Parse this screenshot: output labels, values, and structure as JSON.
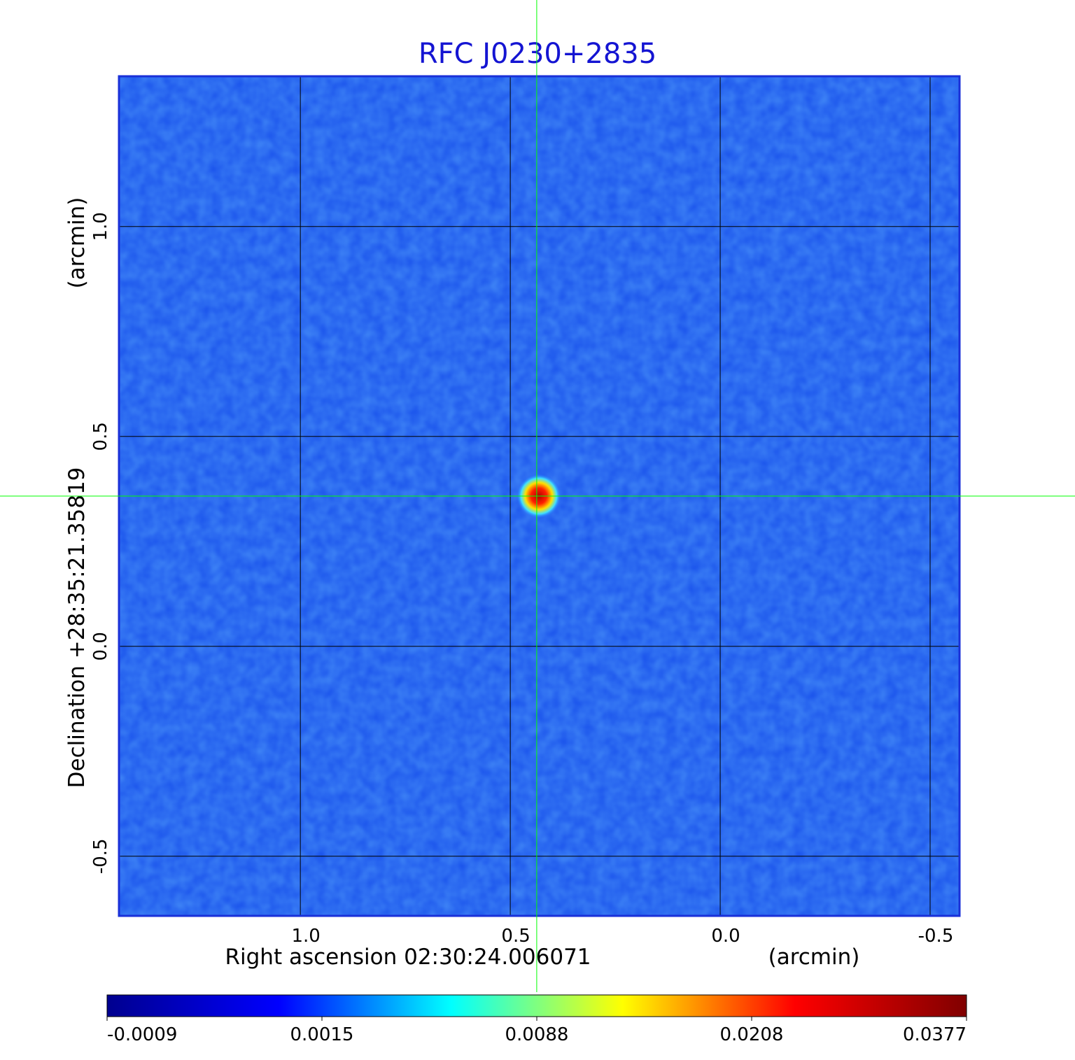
{
  "chart_data": {
    "type": "image",
    "title": "RFC J0230+2835",
    "title_color": "#1414d2",
    "x_label": "Right ascension  02:30:24.006071",
    "x_unit": "(arcmin)",
    "y_label": "Declination  +28:35:21.35819",
    "y_unit": "(arcmin)",
    "xlim": [
      1.432,
      -0.57
    ],
    "ylim": [
      -0.642,
      1.358
    ],
    "xticks": [
      {
        "value": 1,
        "label": "1.0"
      },
      0.5,
      {
        "value": 0,
        "label": "0.0"
      },
      -0.5
    ],
    "yticks": [
      -0.5,
      {
        "value": 0,
        "label": "0.0"
      },
      0.5,
      {
        "value": 1,
        "label": "1.0"
      }
    ],
    "grid": true,
    "crosshair": [
      0.437,
      0.358
    ],
    "crosshair_color": "#00ff00",
    "colorbar": {
      "ticks": [
        -0.0009,
        0.0015,
        0.0088,
        0.0208,
        0.0377
      ],
      "colormap": [
        "#00008f",
        "#0000ff",
        "#00ffff",
        "#ffff00",
        "#ff0000",
        "#800000"
      ]
    }
  }
}
